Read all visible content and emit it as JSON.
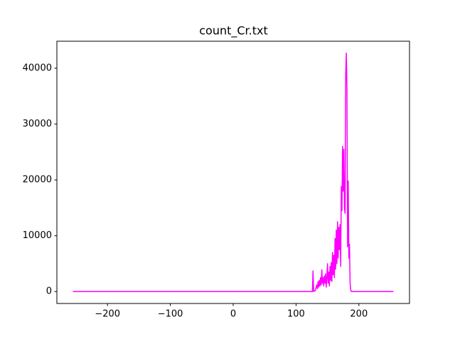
{
  "chart_data": {
    "type": "line",
    "title": "count_Cr.txt",
    "x": [
      -255,
      125,
      126,
      127,
      128,
      129,
      130,
      131,
      132,
      133,
      134,
      135,
      136,
      137,
      138,
      139,
      140,
      141,
      142,
      143,
      144,
      145,
      146,
      147,
      148,
      149,
      150,
      151,
      152,
      153,
      154,
      155,
      156,
      157,
      158,
      159,
      160,
      161,
      162,
      163,
      164,
      165,
      166,
      167,
      168,
      169,
      170,
      171,
      172,
      173,
      174,
      175,
      176,
      177,
      178,
      179,
      180,
      181,
      182,
      183,
      184,
      185,
      186,
      187,
      188,
      255
    ],
    "series": [
      {
        "color": "#ff00ff",
        "values": [
          0,
          0,
          0,
          3700,
          0,
          200,
          100,
          300,
          800,
          1200,
          500,
          1800,
          800,
          2000,
          1000,
          2500,
          1200,
          3900,
          1500,
          2500,
          1000,
          2800,
          1500,
          3200,
          800,
          2500,
          5000,
          1500,
          3500,
          1000,
          4500,
          2000,
          5200,
          1800,
          7000,
          3000,
          6500,
          2500,
          9500,
          4000,
          11000,
          5000,
          12500,
          6000,
          11500,
          7500,
          12000,
          4500,
          18800,
          14500,
          26000,
          18000,
          25500,
          15000,
          14000,
          39000,
          42700,
          36000,
          8000,
          19800,
          6000,
          8500,
          1500,
          300,
          0,
          0
        ]
      }
    ],
    "xlim": [
      -280.5,
      280.5
    ],
    "ylim": [
      -2135,
      44835
    ],
    "xticks": [
      {
        "value": -200,
        "label": "−200"
      },
      {
        "value": -100,
        "label": "−100"
      },
      0,
      100,
      200
    ],
    "yticks": [
      0,
      10000,
      20000,
      30000,
      40000
    ],
    "grid": false
  }
}
